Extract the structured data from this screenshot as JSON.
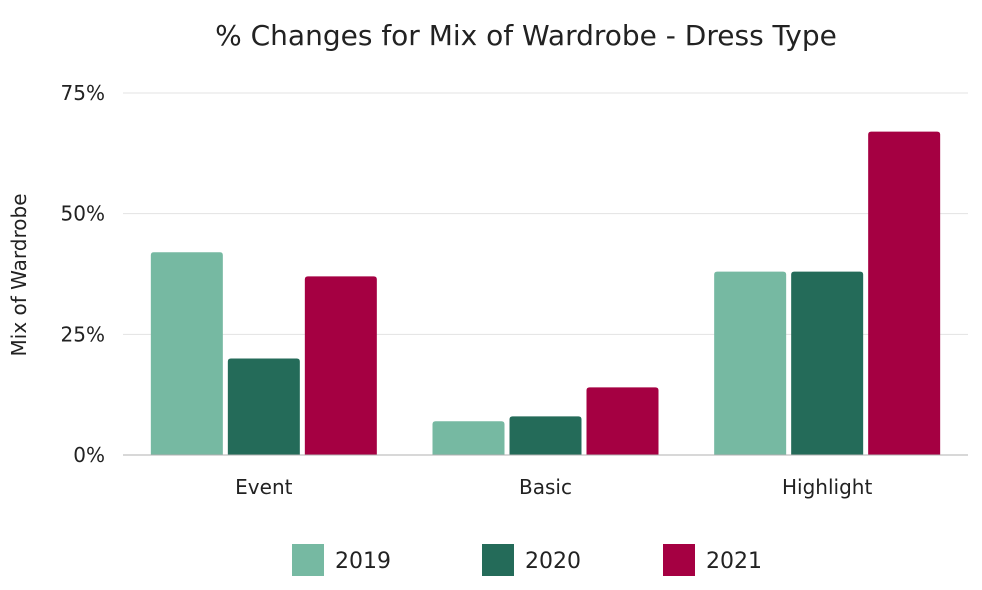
{
  "chart_data": {
    "type": "bar",
    "title": "% Changes for Mix of Wardrobe - Dress Type",
    "xlabel": "",
    "ylabel": "Mix of Wardrobe",
    "categories": [
      "Event",
      "Basic",
      "Highlight"
    ],
    "series": [
      {
        "name": "2019",
        "color": "#76b9a2",
        "values": [
          42,
          7,
          38
        ]
      },
      {
        "name": "2020",
        "color": "#246b59",
        "values": [
          20,
          8,
          38
        ]
      },
      {
        "name": "2021",
        "color": "#a50042",
        "values": [
          37,
          14,
          67
        ]
      }
    ],
    "ylim": [
      0,
      75
    ],
    "yticks": [
      {
        "value": 0,
        "label": "0%"
      },
      {
        "value": 25,
        "label": "25%"
      },
      {
        "value": 50,
        "label": "50%"
      },
      {
        "value": 75,
        "label": "75%"
      }
    ],
    "grid": true,
    "legend_position": "bottom"
  }
}
